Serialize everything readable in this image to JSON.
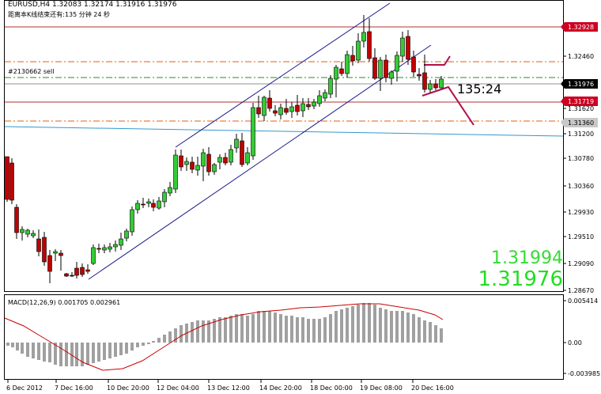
{
  "chart": {
    "symbol_line": "EURUSD,H4  1.32083 1.32174 1.31916 1.31976",
    "timer_line": "距离本K线结束还有:135 分钟 24 秒",
    "order_label": "#2130662 sell",
    "candle_timer": "135:24",
    "bid_display": "1.31994",
    "last_display": "1.31976",
    "price_axis_labels": [
      "1.32928",
      "1.32460",
      "1.31976",
      "1.31620",
      "1.31719",
      "1.31360",
      "1.31200",
      "1.30780",
      "1.30360",
      "1.29930",
      "1.29510",
      "1.29090",
      "1.28670"
    ],
    "time_axis_labels": [
      "6 Dec 2012",
      "7 Dec 16:00",
      "10 Dec 20:00",
      "12 Dec 04:00",
      "13 Dec 12:00",
      "14 Dec 20:00",
      "18 Dec 00:00",
      "19 Dec 08:00",
      "20 Dec 16:00"
    ],
    "macd_label": "MACD(12,26,9) 0.001705 0.002961",
    "macd_axis_labels": [
      "0.005414",
      "0.00",
      "-0.003985"
    ],
    "colors": {
      "bull_candle": "#33cc33",
      "bear_candle": "#c00000",
      "channel": "#1a1a8c",
      "resistance": "#b03030",
      "order_line": "#2a8a2a",
      "dashdot": "#e06010",
      "ma_line": "#3399cc",
      "pen": "#b0104a",
      "macd_hist": "#a0a0a0",
      "macd_signal": "#cc0000",
      "price_tag_dark": "#000000",
      "price_tag_red": "#cc0022",
      "price_tag_grey": "#c8c8c8"
    }
  }
}
